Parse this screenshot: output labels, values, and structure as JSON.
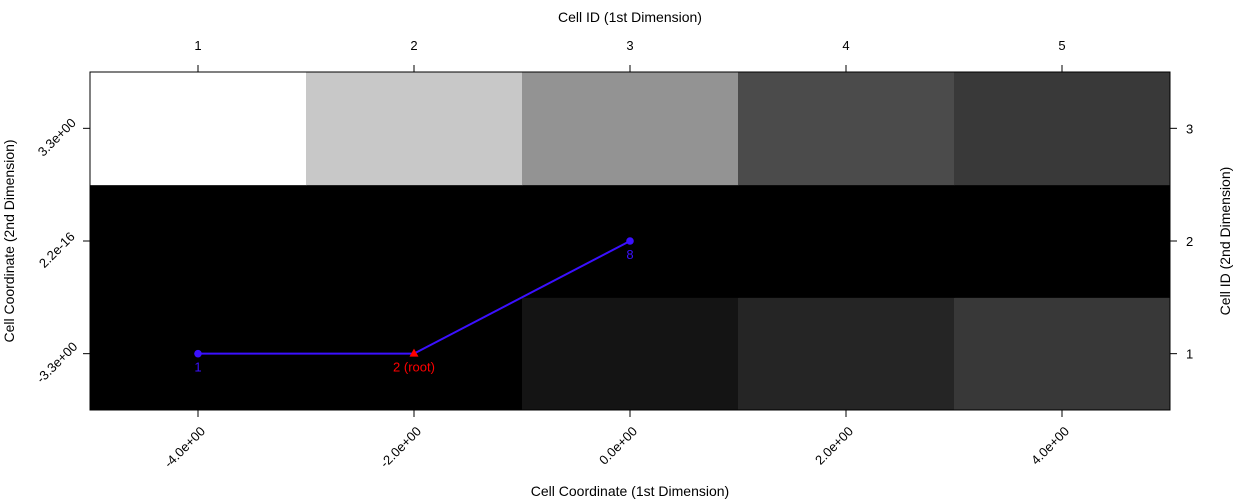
{
  "chart_data": {
    "type": "heatmap",
    "title": "",
    "xlabel_bottom": "Cell Coordinate (1st Dimension)",
    "xlabel_top": "Cell ID (1st Dimension)",
    "ylabel_left": "Cell Coordinate (2nd Dimension)",
    "ylabel_right": "Cell ID (2nd Dimension)",
    "x_coords": [
      -4,
      -2,
      0,
      2,
      4
    ],
    "y_coords": [
      -3.3,
      0,
      3.3
    ],
    "x_tick_labels": [
      "-4.0e+00",
      "-2.0e+00",
      "0.0e+00",
      "2.0e+00",
      "4.0e+00"
    ],
    "y_tick_labels": [
      "-3.3e+00",
      "2.2e-16",
      "3.3e+00"
    ],
    "x_id_labels": [
      "1",
      "2",
      "3",
      "4",
      "5"
    ],
    "y_id_labels": [
      "1",
      "2",
      "3"
    ],
    "cell_colors": [
      [
        "#000000",
        "#000000",
        "#141414",
        "#252525",
        "#383838"
      ],
      [
        "#000000",
        "#000000",
        "#000000",
        "#000000",
        "#000000"
      ],
      [
        "#ffffff",
        "#c8c8c8",
        "#939393",
        "#4b4b4b",
        "#393939"
      ]
    ],
    "path": {
      "color": "#3b10ff",
      "root_color": "#ff0000",
      "nodes": [
        {
          "label": "1",
          "x": -4,
          "y": -3.3,
          "root": false
        },
        {
          "label": "2 (root)",
          "x": -2,
          "y": -3.3,
          "root": true
        },
        {
          "label": "8",
          "x": 0,
          "y": 0,
          "root": false
        }
      ],
      "edges": [
        [
          1,
          0
        ],
        [
          1,
          2
        ]
      ]
    }
  }
}
